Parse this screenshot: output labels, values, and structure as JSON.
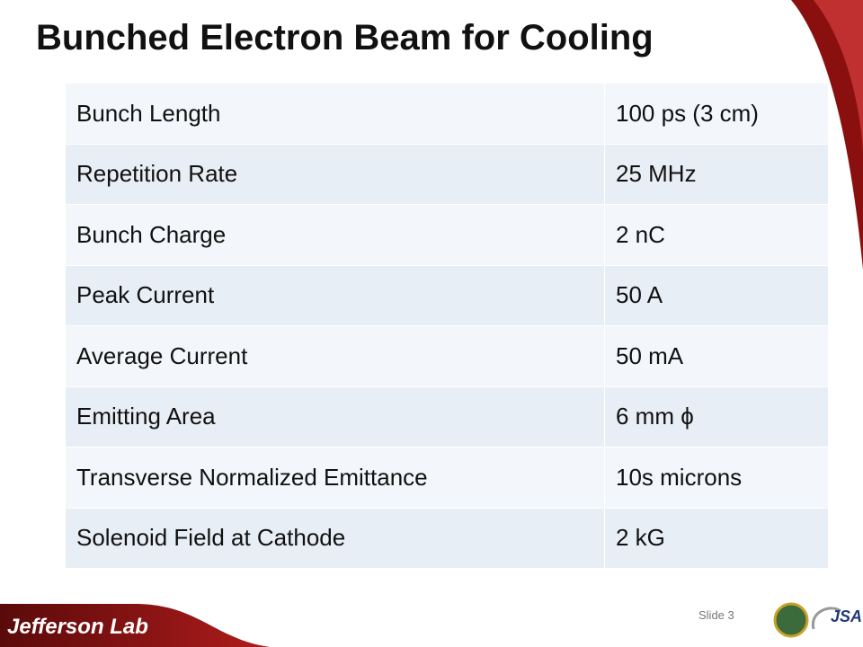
{
  "header": {
    "title": "Bunched Electron Beam for Cooling"
  },
  "table": {
    "rows": [
      [
        "Bunch Length",
        "100 ps (3 cm)"
      ],
      [
        "Repetition Rate",
        "25 MHz"
      ],
      [
        "Bunch Charge",
        "2 nC"
      ],
      [
        "Peak Current",
        "50 A"
      ],
      [
        "Average Current",
        "50 mA"
      ],
      [
        "Emitting Area",
        "6 mm ϕ"
      ],
      [
        "Transverse Normalized Emittance",
        "10s microns"
      ],
      [
        "Solenoid Field at Cathode",
        "2 kG"
      ]
    ]
  },
  "footer": {
    "logo": "Jefferson Lab",
    "slide": "Slide 3",
    "partner": "JSA"
  }
}
